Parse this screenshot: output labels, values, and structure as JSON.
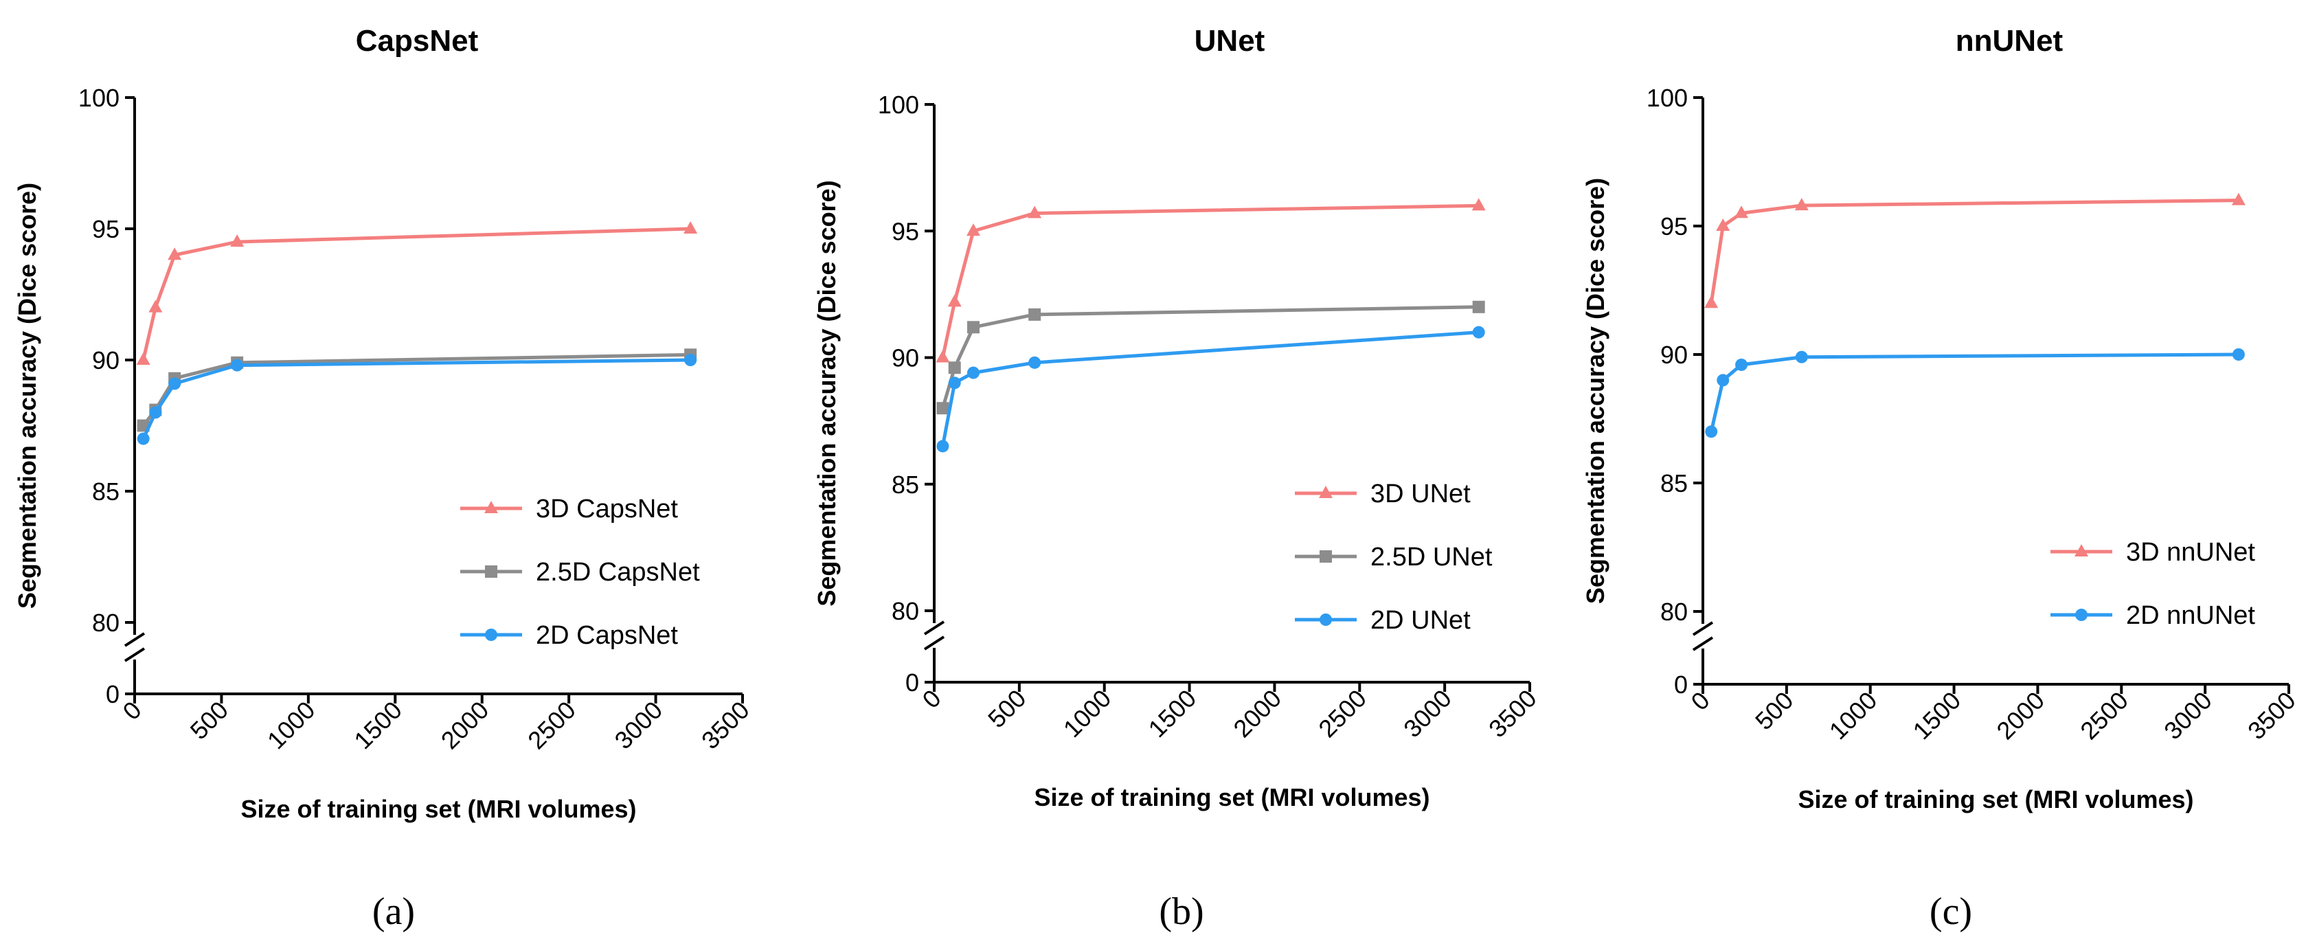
{
  "panel_labels": [
    "(a)",
    "(b)",
    "(c)"
  ],
  "colors": {
    "3D": "#f47f7f",
    "2.5D": "#8c8c8c",
    "2D": "#2e9bf0"
  },
  "chart_data": [
    {
      "type": "line",
      "title": "CapsNet",
      "xlabel": "Size of training set (MRI volumes)",
      "ylabel": "Segmentation accuracy (Dice score)",
      "xlim": [
        0,
        3500
      ],
      "xticks": [
        0,
        500,
        1000,
        1500,
        2000,
        2500,
        3000,
        3500
      ],
      "ylim": [
        80,
        100
      ],
      "yticks": [
        80,
        85,
        90,
        95,
        100
      ],
      "y_axis_break": true,
      "y_break_tick": 0,
      "legend_position": "bottom-right",
      "series": [
        {
          "name": "3D CapsNet",
          "marker": "triangle",
          "color": "#f47f7f",
          "points": [
            [
              50,
              90.0
            ],
            [
              120,
              92.0
            ],
            [
              230,
              94.0
            ],
            [
              590,
              94.5
            ],
            [
              3200,
              95.0
            ]
          ]
        },
        {
          "name": "2.5D CapsNet",
          "marker": "square",
          "color": "#8c8c8c",
          "points": [
            [
              50,
              87.5
            ],
            [
              120,
              88.1
            ],
            [
              230,
              89.3
            ],
            [
              590,
              89.9
            ],
            [
              3200,
              90.2
            ]
          ]
        },
        {
          "name": "2D CapsNet",
          "marker": "circle",
          "color": "#2e9bf0",
          "points": [
            [
              50,
              87.0
            ],
            [
              120,
              88.0
            ],
            [
              230,
              89.1
            ],
            [
              590,
              89.8
            ],
            [
              3200,
              90.0
            ]
          ]
        }
      ]
    },
    {
      "type": "line",
      "title": "UNet",
      "xlabel": "Size of training set (MRI volumes)",
      "ylabel": "Segmentation accuracy (Dice score)",
      "xlim": [
        0,
        3500
      ],
      "xticks": [
        0,
        500,
        1000,
        1500,
        2000,
        2500,
        3000,
        3500
      ],
      "ylim": [
        80,
        100
      ],
      "yticks": [
        80,
        85,
        90,
        95,
        100
      ],
      "y_axis_break": true,
      "y_break_tick": 0,
      "legend_position": "bottom-right",
      "series": [
        {
          "name": "3D UNet",
          "marker": "triangle",
          "color": "#f47f7f",
          "points": [
            [
              50,
              90.0
            ],
            [
              120,
              92.2
            ],
            [
              230,
              95.0
            ],
            [
              590,
              95.7
            ],
            [
              3200,
              96.0
            ]
          ]
        },
        {
          "name": "2.5D UNet",
          "marker": "square",
          "color": "#8c8c8c",
          "points": [
            [
              50,
              88.0
            ],
            [
              120,
              89.6
            ],
            [
              230,
              91.2
            ],
            [
              590,
              91.7
            ],
            [
              3200,
              92.0
            ]
          ]
        },
        {
          "name": "2D UNet",
          "marker": "circle",
          "color": "#2e9bf0",
          "points": [
            [
              50,
              86.5
            ],
            [
              120,
              89.0
            ],
            [
              230,
              89.4
            ],
            [
              590,
              89.8
            ],
            [
              3200,
              91.0
            ]
          ]
        }
      ]
    },
    {
      "type": "line",
      "title": "nnUNet",
      "xlabel": "Size of training set (MRI volumes)",
      "ylabel": "Segmentation accuracy (Dice score)",
      "xlim": [
        0,
        3500
      ],
      "xticks": [
        0,
        500,
        1000,
        1500,
        2000,
        2500,
        3000,
        3500
      ],
      "ylim": [
        80,
        100
      ],
      "yticks": [
        80,
        85,
        90,
        95,
        100
      ],
      "y_axis_break": true,
      "y_break_tick": 0,
      "legend_position": "bottom-right",
      "series": [
        {
          "name": "3D nnUNet",
          "marker": "triangle",
          "color": "#f47f7f",
          "points": [
            [
              50,
              92.0
            ],
            [
              120,
              95.0
            ],
            [
              230,
              95.5
            ],
            [
              590,
              95.8
            ],
            [
              3200,
              96.0
            ]
          ]
        },
        {
          "name": "2D nnUNet",
          "marker": "circle",
          "color": "#2e9bf0",
          "points": [
            [
              50,
              87.0
            ],
            [
              120,
              89.0
            ],
            [
              230,
              89.6
            ],
            [
              590,
              89.9
            ],
            [
              3200,
              90.0
            ]
          ]
        }
      ]
    }
  ]
}
